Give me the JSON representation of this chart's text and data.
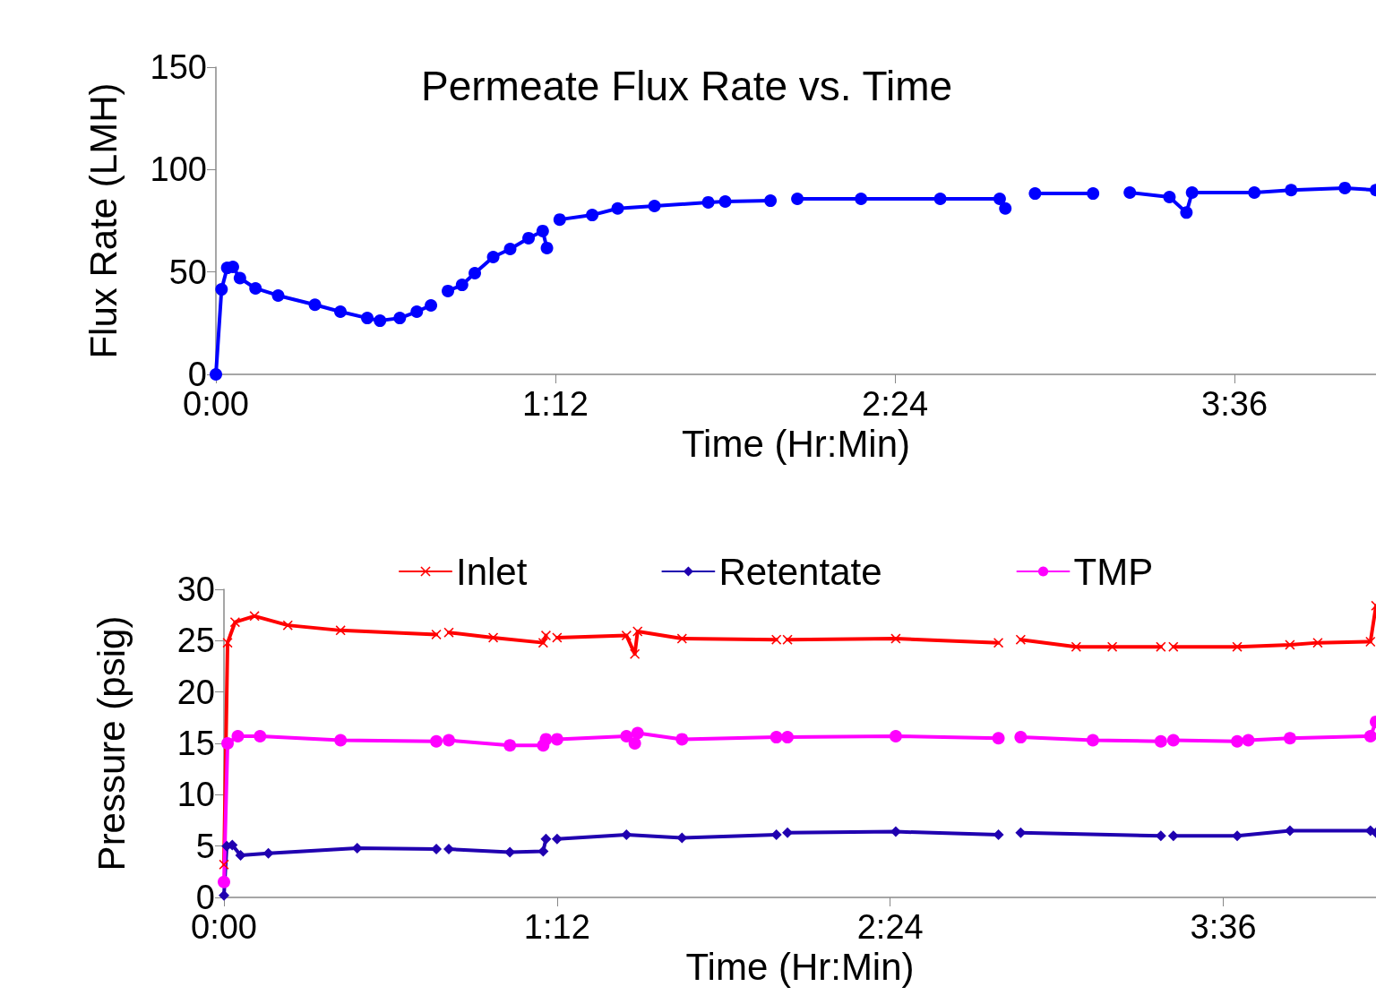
{
  "chart_data": [
    {
      "type": "line",
      "title": "Permeate Flux Rate vs. Time",
      "xlabel": "Time (Hr:Min)",
      "ylabel": "Flux Rate (LMH)",
      "xlim": [
        0,
        4.1
      ],
      "ylim": [
        0,
        150
      ],
      "yticks": [
        0,
        50,
        100,
        150
      ],
      "xticks": [
        {
          "value": 0,
          "label": "0:00"
        },
        {
          "value": 1.2,
          "label": "1:12"
        },
        {
          "value": 2.4,
          "label": "2:24"
        },
        {
          "value": 3.6,
          "label": "3:36"
        }
      ],
      "grid": false,
      "legend": false,
      "marker": "circle",
      "line_style": "solid",
      "series": [
        {
          "color": "#0000ff",
          "x": [
            0,
            0.02,
            0.04,
            0.06,
            0.085,
            0.14,
            0.22,
            0.35,
            0.44,
            0.535,
            0.58,
            0.65,
            0.71,
            0.76,
            0.79,
            0.82,
            0.87,
            0.915,
            0.98,
            1.04,
            1.105,
            1.155,
            1.17,
            1.19,
            1.215,
            1.33,
            1.42,
            1.55,
            1.74,
            1.8,
            1.96,
            2.0,
            2.055,
            2.28,
            2.56,
            2.77,
            2.79,
            2.84,
            2.895,
            3.1,
            3.16,
            3.23,
            3.37,
            3.43,
            3.45,
            3.67,
            3.8,
            3.99,
            4.1
          ],
          "values": [
            0,
            41.5,
            52,
            52.5,
            47,
            42,
            38.5,
            34,
            30.6,
            27.5,
            26.2,
            27.5,
            30.6,
            33.7,
            null,
            40.7,
            43.7,
            49.4,
            57.3,
            61.2,
            66.5,
            70,
            61.7,
            null,
            75.6,
            77.8,
            81,
            82.2,
            84,
            84.4,
            84.8,
            null,
            85.7,
            85.7,
            85.7,
            85.7,
            81,
            null,
            88.3,
            88.3,
            null,
            88.8,
            86.6,
            79,
            88.8,
            88.8,
            90,
            91,
            90
          ]
        }
      ]
    },
    {
      "type": "line",
      "xlabel": "Time (Hr:Min)",
      "ylabel": "Pressure (psig)",
      "xlim": [
        0,
        4.15
      ],
      "ylim": [
        0,
        30
      ],
      "yticks": [
        0,
        5,
        10,
        15,
        20,
        25,
        30
      ],
      "xticks": [
        {
          "value": 0,
          "label": "0:00"
        },
        {
          "value": 1.2,
          "label": "1:12"
        },
        {
          "value": 2.4,
          "label": "2:24"
        },
        {
          "value": 3.6,
          "label": "3:36"
        }
      ],
      "grid": false,
      "legend": "top",
      "line_style": "solid",
      "series": [
        {
          "name": "Inlet",
          "color": "#ff0000",
          "marker": "cross",
          "x": [
            0,
            0.013,
            0.04,
            0.11,
            0.23,
            0.42,
            0.765,
            0.79,
            0.81,
            0.97,
            1.15,
            1.16,
            1.18,
            1.2,
            1.45,
            1.48,
            1.49,
            1.65,
            1.99,
            2.01,
            2.03,
            2.42,
            2.79,
            2.83,
            2.87,
            3.07,
            3.2,
            3.375,
            3.4,
            3.42,
            3.65,
            3.84,
            3.94,
            4.13,
            4.15
          ],
          "values": [
            3.2,
            24.8,
            26.8,
            27.4,
            26.5,
            26,
            25.6,
            null,
            25.8,
            25.3,
            24.8,
            25.5,
            null,
            25.3,
            25.5,
            23.7,
            25.9,
            25.2,
            25.1,
            null,
            25.1,
            25.2,
            24.8,
            null,
            25.1,
            24.4,
            24.4,
            24.4,
            null,
            24.4,
            24.4,
            24.6,
            24.8,
            24.9,
            28.4
          ]
        },
        {
          "name": "Retentate",
          "color": "#2000b0",
          "marker": "diamond",
          "x": [
            0,
            0.01,
            0.03,
            0.06,
            0.16,
            0.48,
            0.765,
            0.79,
            0.81,
            1.03,
            1.15,
            1.16,
            1.18,
            1.2,
            1.45,
            1.65,
            1.99,
            2.01,
            2.03,
            2.42,
            2.79,
            2.83,
            2.87,
            3.375,
            3.4,
            3.42,
            3.65,
            3.84,
            4.13,
            4.15
          ],
          "values": [
            0.2,
            5,
            5.1,
            4.1,
            4.3,
            4.8,
            4.7,
            null,
            4.7,
            4.4,
            4.5,
            5.7,
            null,
            5.7,
            6.1,
            5.8,
            6.1,
            null,
            6.3,
            6.4,
            6.1,
            null,
            6.3,
            6,
            null,
            6,
            6,
            6.5,
            6.5,
            6.3
          ]
        },
        {
          "name": "TMP",
          "color": "#ff00ff",
          "marker": "circle",
          "x": [
            0,
            0.013,
            0.05,
            0.13,
            0.42,
            0.765,
            0.79,
            0.81,
            1.03,
            1.15,
            1.16,
            1.18,
            1.2,
            1.45,
            1.48,
            1.49,
            1.65,
            1.99,
            2.01,
            2.03,
            2.42,
            2.79,
            2.83,
            2.87,
            3.13,
            3.375,
            3.4,
            3.42,
            3.65,
            3.67,
            3.69,
            3.84,
            4.13,
            4.15
          ],
          "values": [
            1.5,
            15,
            15.7,
            15.7,
            15.3,
            15.2,
            null,
            15.3,
            14.8,
            14.8,
            15.4,
            null,
            15.4,
            15.7,
            15,
            16,
            15.4,
            15.6,
            null,
            15.6,
            15.7,
            15.5,
            null,
            15.6,
            15.3,
            15.2,
            null,
            15.3,
            15.2,
            null,
            15.3,
            15.5,
            15.7,
            17.1
          ]
        }
      ]
    }
  ]
}
